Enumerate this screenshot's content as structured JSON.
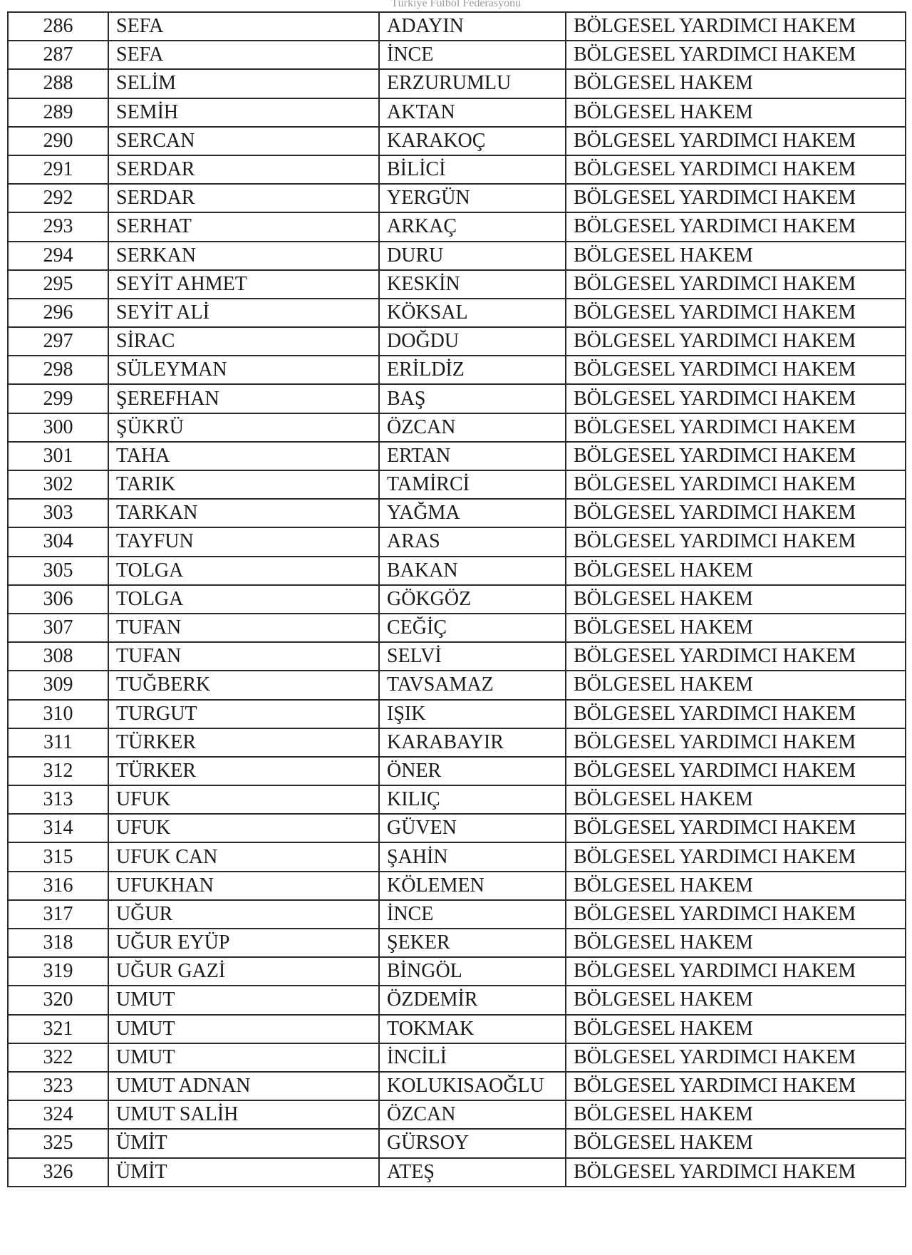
{
  "header": "Türkiye Futbol Federasyonu",
  "rows": [
    [
      "286",
      "SEFA",
      "ADAYIN",
      "BÖLGESEL YARDIMCI HAKEM"
    ],
    [
      "287",
      "SEFA",
      "İNCE",
      "BÖLGESEL YARDIMCI HAKEM"
    ],
    [
      "288",
      "SELİM",
      "ERZURUMLU",
      "BÖLGESEL HAKEM"
    ],
    [
      "289",
      "SEMİH",
      "AKTAN",
      "BÖLGESEL HAKEM"
    ],
    [
      "290",
      "SERCAN",
      "KARAKOÇ",
      "BÖLGESEL YARDIMCI HAKEM"
    ],
    [
      "291",
      "SERDAR",
      "BİLİCİ",
      "BÖLGESEL YARDIMCI HAKEM"
    ],
    [
      "292",
      "SERDAR",
      "YERGÜN",
      "BÖLGESEL YARDIMCI HAKEM"
    ],
    [
      "293",
      "SERHAT",
      "ARKAÇ",
      "BÖLGESEL YARDIMCI HAKEM"
    ],
    [
      "294",
      "SERKAN",
      "DURU",
      "BÖLGESEL HAKEM"
    ],
    [
      "295",
      "SEYİT AHMET",
      "KESKİN",
      "BÖLGESEL YARDIMCI HAKEM"
    ],
    [
      "296",
      "SEYİT ALİ",
      "KÖKSAL",
      "BÖLGESEL YARDIMCI HAKEM"
    ],
    [
      "297",
      "SİRAC",
      "DOĞDU",
      "BÖLGESEL YARDIMCI HAKEM"
    ],
    [
      "298",
      "SÜLEYMAN",
      "ERİLDİZ",
      "BÖLGESEL YARDIMCI HAKEM"
    ],
    [
      "299",
      "ŞEREFHAN",
      "BAŞ",
      "BÖLGESEL YARDIMCI HAKEM"
    ],
    [
      "300",
      "ŞÜKRÜ",
      "ÖZCAN",
      "BÖLGESEL YARDIMCI HAKEM"
    ],
    [
      "301",
      "TAHA",
      "ERTAN",
      "BÖLGESEL YARDIMCI HAKEM"
    ],
    [
      "302",
      "TARIK",
      "TAMİRCİ",
      "BÖLGESEL YARDIMCI HAKEM"
    ],
    [
      "303",
      "TARKAN",
      "YAĞMA",
      "BÖLGESEL YARDIMCI HAKEM"
    ],
    [
      "304",
      "TAYFUN",
      "ARAS",
      "BÖLGESEL YARDIMCI HAKEM"
    ],
    [
      "305",
      "TOLGA",
      "BAKAN",
      "BÖLGESEL HAKEM"
    ],
    [
      "306",
      "TOLGA",
      "GÖKGÖZ",
      "BÖLGESEL HAKEM"
    ],
    [
      "307",
      "TUFAN",
      "CEĞİÇ",
      "BÖLGESEL HAKEM"
    ],
    [
      "308",
      "TUFAN",
      "SELVİ",
      "BÖLGESEL YARDIMCI HAKEM"
    ],
    [
      "309",
      "TUĞBERK",
      "TAVSAMAZ",
      "BÖLGESEL HAKEM"
    ],
    [
      "310",
      "TURGUT",
      "IŞIK",
      "BÖLGESEL YARDIMCI HAKEM"
    ],
    [
      "311",
      "TÜRKER",
      "KARABAYIR",
      "BÖLGESEL YARDIMCI HAKEM"
    ],
    [
      "312",
      "TÜRKER",
      "ÖNER",
      "BÖLGESEL YARDIMCI HAKEM"
    ],
    [
      "313",
      "UFUK",
      "KILIÇ",
      "BÖLGESEL HAKEM"
    ],
    [
      "314",
      "UFUK",
      "GÜVEN",
      "BÖLGESEL YARDIMCI HAKEM"
    ],
    [
      "315",
      "UFUK CAN",
      "ŞAHİN",
      "BÖLGESEL YARDIMCI HAKEM"
    ],
    [
      "316",
      "UFUKHAN",
      "KÖLEMEN",
      "BÖLGESEL HAKEM"
    ],
    [
      "317",
      "UĞUR",
      "İNCE",
      "BÖLGESEL YARDIMCI HAKEM"
    ],
    [
      "318",
      "UĞUR EYÜP",
      "ŞEKER",
      "BÖLGESEL HAKEM"
    ],
    [
      "319",
      "UĞUR GAZİ",
      "BİNGÖL",
      "BÖLGESEL YARDIMCI HAKEM"
    ],
    [
      "320",
      "UMUT",
      "ÖZDEMİR",
      "BÖLGESEL HAKEM"
    ],
    [
      "321",
      "UMUT",
      "TOKMAK",
      "BÖLGESEL HAKEM"
    ],
    [
      "322",
      "UMUT",
      "İNCİLİ",
      "BÖLGESEL YARDIMCI HAKEM"
    ],
    [
      "323",
      "UMUT ADNAN",
      "KOLUKISAOĞLU",
      "BÖLGESEL YARDIMCI HAKEM"
    ],
    [
      "324",
      "UMUT SALİH",
      "ÖZCAN",
      "BÖLGESEL HAKEM"
    ],
    [
      "325",
      "ÜMİT",
      "GÜRSOY",
      "BÖLGESEL HAKEM"
    ],
    [
      "326",
      "ÜMİT",
      "ATEŞ",
      "BÖLGESEL YARDIMCI HAKEM"
    ]
  ]
}
